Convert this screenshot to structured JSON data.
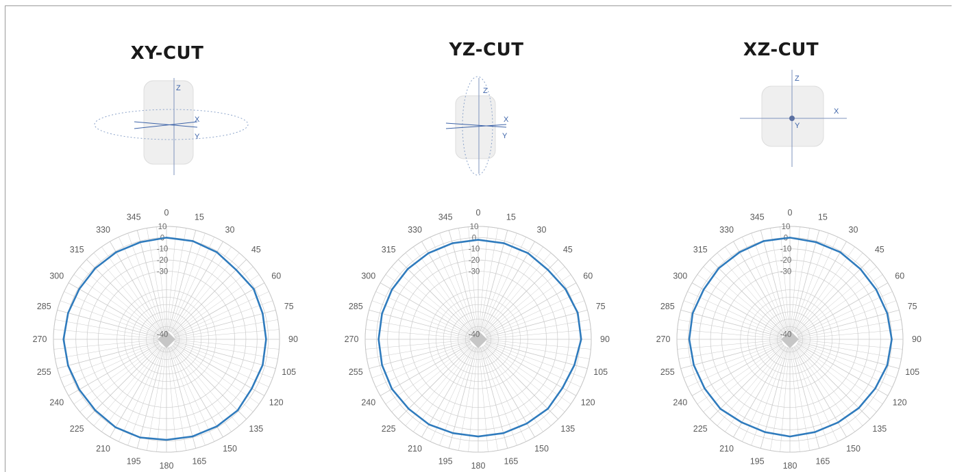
{
  "colors": {
    "trace": "#2f7bbd",
    "grid": "#c9c9c9",
    "axis": "#3b62a8"
  },
  "panels": [
    {
      "title": "XY-CUT",
      "axes": [
        "Z",
        "X",
        "Y"
      ]
    },
    {
      "title": "YZ-CUT",
      "axes": [
        "Z",
        "X",
        "Y"
      ]
    },
    {
      "title": "XZ-CUT",
      "axes": [
        "Z",
        "X",
        "Y"
      ]
    }
  ],
  "chart_data": [
    {
      "type": "polar-line",
      "title": "XY-CUT",
      "angle_ticks": [
        "0",
        "15",
        "30",
        "45",
        "60",
        "75",
        "90",
        "105",
        "120",
        "135",
        "150",
        "165",
        "180",
        "195",
        "210",
        "225",
        "240",
        "255",
        "270",
        "285",
        "300",
        "315",
        "330",
        "345"
      ],
      "radial_ticks": [
        "10",
        "0",
        "-10",
        "-20",
        "-30",
        "-40"
      ],
      "rlim": [
        -45,
        10
      ],
      "angles": [
        0,
        15,
        30,
        45,
        60,
        75,
        90,
        105,
        120,
        135,
        150,
        165,
        180,
        195,
        210,
        225,
        240,
        255,
        270,
        285,
        300,
        315,
        330,
        345
      ],
      "values": [
        0,
        0,
        -1,
        -3,
        -1,
        -2,
        -2,
        -2,
        -3,
        -1,
        -1,
        -1,
        -1,
        0,
        0,
        -1,
        -1,
        0,
        1,
        0,
        -1,
        -1,
        -1,
        -1
      ]
    },
    {
      "type": "polar-line",
      "title": "YZ-CUT",
      "angle_ticks": [
        "0",
        "15",
        "30",
        "45",
        "60",
        "75",
        "90",
        "105",
        "120",
        "135",
        "150",
        "165",
        "180",
        "195",
        "210",
        "225",
        "240",
        "255",
        "270",
        "285",
        "300",
        "315",
        "330",
        "345"
      ],
      "radial_ticks": [
        "10",
        "0",
        "-10",
        "-20",
        "-30",
        "-40"
      ],
      "rlim": [
        -45,
        10
      ],
      "angles": [
        0,
        15,
        30,
        45,
        60,
        75,
        90,
        105,
        120,
        135,
        150,
        165,
        180,
        195,
        210,
        225,
        240,
        255,
        270,
        285,
        300,
        315,
        330,
        345
      ],
      "values": [
        -2,
        -2,
        -2,
        -3,
        -1,
        1,
        1,
        -2,
        -4,
        -3,
        -4,
        -4,
        -4,
        -4,
        -3,
        -3,
        -2,
        -2,
        -2,
        -2,
        -2,
        -2,
        -2,
        -2
      ]
    },
    {
      "type": "polar-line",
      "title": "XZ-CUT",
      "angle_ticks": [
        "0",
        "15",
        "30",
        "45",
        "60",
        "75",
        "90",
        "105",
        "120",
        "135",
        "150",
        "165",
        "180",
        "195",
        "210",
        "225",
        "240",
        "255",
        "270",
        "285",
        "300",
        "315",
        "330",
        "345"
      ],
      "radial_ticks": [
        "10",
        "0",
        "-10",
        "-20",
        "-30",
        "-40"
      ],
      "rlim": [
        -45,
        10
      ],
      "angles": [
        0,
        15,
        30,
        45,
        60,
        75,
        90,
        105,
        120,
        135,
        150,
        165,
        180,
        195,
        210,
        225,
        240,
        255,
        270,
        285,
        300,
        315,
        330,
        345
      ],
      "values": [
        0,
        -1,
        -1,
        -2,
        -2,
        -1,
        0,
        -1,
        -3,
        -4,
        -5,
        -5,
        -4,
        -5,
        -5,
        -3,
        -3,
        -2,
        -1,
        -1,
        -2,
        -1,
        -1,
        0
      ]
    }
  ]
}
